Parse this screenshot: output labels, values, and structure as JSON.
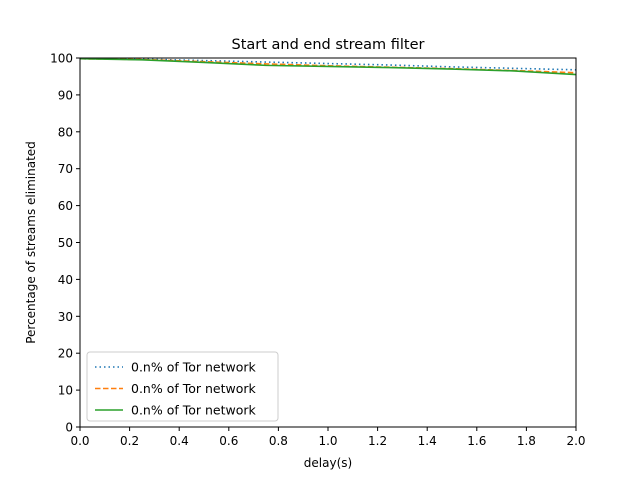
{
  "chart_data": {
    "type": "line",
    "title": "Start and end stream filter",
    "xlabel": "delay(s)",
    "ylabel": "Percentage of streams eliminated",
    "xlim": [
      0,
      2
    ],
    "ylim": [
      0,
      100
    ],
    "xticks": [
      "0.0",
      "0.2",
      "0.4",
      "0.6",
      "0.8",
      "1.0",
      "1.2",
      "1.4",
      "1.6",
      "1.8",
      "2.0"
    ],
    "yticks": [
      "0",
      "10",
      "20",
      "30",
      "40",
      "50",
      "60",
      "70",
      "80",
      "90",
      "100"
    ],
    "grid": false,
    "legend_position": "lower-left",
    "x": [
      0.0,
      0.25,
      0.5,
      0.75,
      1.0,
      1.25,
      1.5,
      1.75,
      2.0
    ],
    "series": [
      {
        "name": "0.n% of Tor network",
        "style": "dotted",
        "color": "#1f77b4",
        "values": [
          99.8,
          99.7,
          99.3,
          98.9,
          98.5,
          98.1,
          97.6,
          97.2,
          96.8
        ]
      },
      {
        "name": "0.n% of Tor network",
        "style": "dashed",
        "color": "#ff7f0e",
        "values": [
          99.8,
          99.6,
          99.0,
          98.4,
          97.9,
          97.5,
          97.1,
          96.6,
          96.0
        ]
      },
      {
        "name": "0.n% of Tor network",
        "style": "solid",
        "color": "#2ca02c",
        "values": [
          99.8,
          99.5,
          98.8,
          98.0,
          97.7,
          97.4,
          97.0,
          96.5,
          95.5
        ]
      }
    ]
  }
}
